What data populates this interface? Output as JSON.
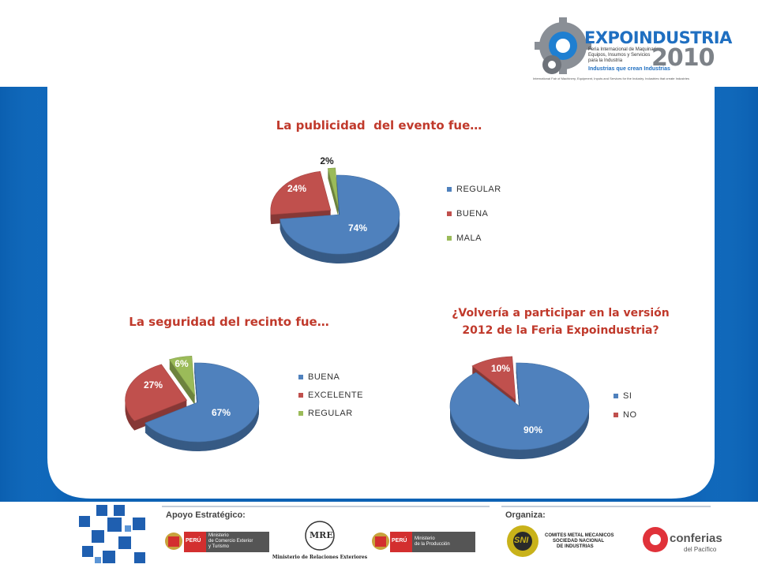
{
  "header": {
    "logo_title": "EXPOINDUSTRIA",
    "logo_year": "2010",
    "logo_subtitle_lines": [
      "Feria Internacional de Maquinaria,",
      "Equipos, Insumos y Servicios",
      "para la Industria"
    ],
    "logo_tagline": "Industrias que crean Industrias",
    "logo_english": "International Fair of Machinery, Equipment, Inputs and Services for the Industry. Industries that create Industries"
  },
  "charts": [
    {
      "title": "La publicidad  del evento fue…"
    },
    {
      "title": "La seguridad del recinto fue…"
    },
    {
      "title_lines": [
        "¿Volvería a participar en la versión",
        "2012 de la Feria Expoindustria?"
      ]
    }
  ],
  "chart_data": [
    {
      "type": "pie",
      "title": "La publicidad  del evento fue…",
      "categories": [
        "REGULAR",
        "BUENA",
        "MALA"
      ],
      "values": [
        74,
        24,
        2
      ],
      "labels": [
        "74%",
        "24%",
        "2%"
      ],
      "colors": [
        "#4f81bd",
        "#c0504d",
        "#9bbb59"
      ],
      "legend_position": "right"
    },
    {
      "type": "pie",
      "title": "La seguridad del recinto fue…",
      "categories": [
        "BUENA",
        "EXCELENTE",
        "REGULAR"
      ],
      "values": [
        67,
        27,
        6
      ],
      "labels": [
        "67%",
        "27%",
        "6%"
      ],
      "colors": [
        "#4f81bd",
        "#c0504d",
        "#9bbb59"
      ],
      "legend_position": "right"
    },
    {
      "type": "pie",
      "title": "¿Volvería a participar en la versión 2012 de la Feria Expoindustria?",
      "categories": [
        "SI",
        "NO"
      ],
      "values": [
        90,
        10
      ],
      "labels": [
        "90%",
        "10%"
      ],
      "colors": [
        "#4f81bd",
        "#c0504d"
      ],
      "legend_position": "right"
    }
  ],
  "footer": {
    "apoyo_label": "Apoyo Estratégico:",
    "organiza_label": "Organiza:",
    "peru_text": "PERÚ",
    "mincetur_lines": [
      "Ministerio",
      "de Comercio Exterior",
      "y Turismo"
    ],
    "rree_text": "Ministerio de Relaciones Exteriores",
    "rree_monogram": "MRE",
    "produce_lines": [
      "Ministerio",
      "de la Producción"
    ],
    "sni_monogram": "SNI",
    "sni_lines": [
      "COMITES METAL MECANICOS",
      "SOCIEDAD NACIONAL",
      "DE INDUSTRIAS"
    ],
    "conferias_text": "conferias",
    "conferias_sub": "del Pacífico"
  }
}
